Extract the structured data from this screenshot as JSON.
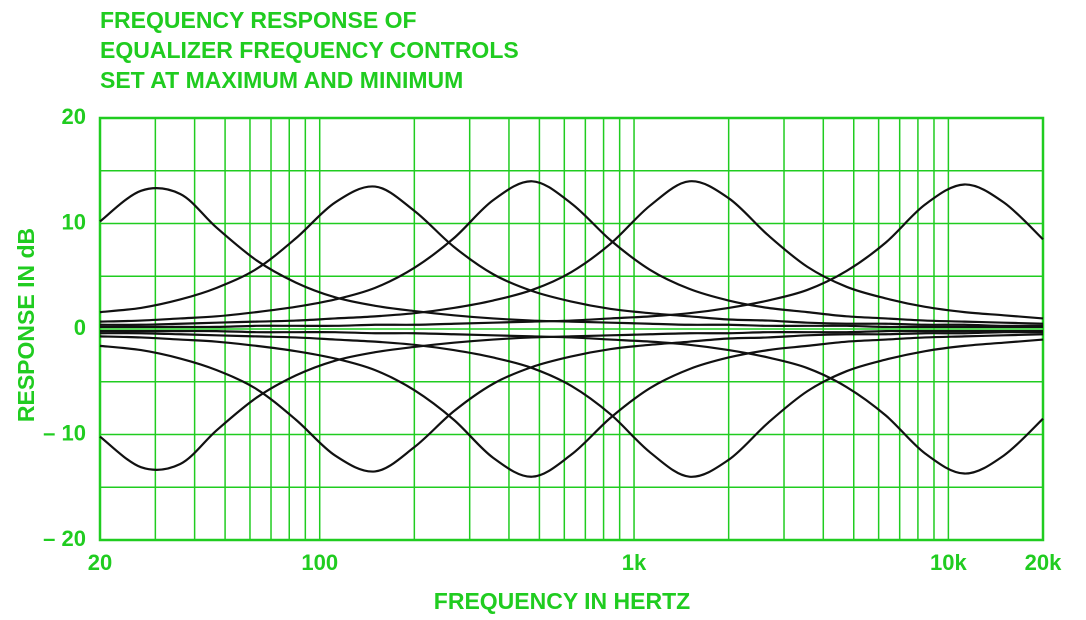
{
  "chart_data": {
    "type": "line",
    "title": [
      "FREQUENCY RESPONSE OF",
      "EQUALIZER FREQUENCY CONTROLS",
      "SET AT MAXIMUM AND MINIMUM"
    ],
    "xlabel": "FREQUENCY IN HERTZ",
    "ylabel": "RESPONSE IN dB",
    "xscale": "log",
    "grid": true,
    "axis_color": "#20cc20",
    "xlim": [
      20,
      20000
    ],
    "ylim": [
      -20,
      20
    ],
    "xticks": [
      20,
      100,
      {
        "value": 1000,
        "label": "1k"
      },
      {
        "value": 10000,
        "label": "10k"
      },
      {
        "value": 20000,
        "label": "20k"
      }
    ],
    "yticks": [
      {
        "value": -20,
        "label": "– 20"
      },
      {
        "value": -10,
        "label": "– 10"
      },
      0,
      10,
      20
    ],
    "xminorticks": [
      30,
      40,
      50,
      60,
      70,
      80,
      90,
      200,
      300,
      400,
      500,
      600,
      700,
      800,
      900,
      2000,
      3000,
      4000,
      5000,
      6000,
      7000,
      8000,
      9000
    ],
    "yminorticks": [
      -15,
      -5,
      5,
      15
    ],
    "x": [
      20,
      27,
      36,
      47,
      63,
      84,
      112,
      150,
      200,
      267,
      356,
      474,
      632,
      843,
      1125,
      1500,
      2000,
      2667,
      3557,
      4743,
      6325,
      8434,
      11247,
      15000,
      20000
    ],
    "series": [
      {
        "color": "#111111",
        "values": [
          10.2,
          13.1,
          12.8,
          9.6,
          6.5,
          4.4,
          3.0,
          2.2,
          1.7,
          1.3,
          1.0,
          0.8,
          0.7,
          0.6,
          0.5,
          0.4,
          0.4,
          0.3,
          0.3,
          0.3,
          0.2,
          0.2,
          0.2,
          0.2,
          0.2
        ]
      },
      {
        "color": "#111111",
        "values": [
          1.6,
          2.0,
          2.8,
          3.9,
          5.7,
          8.6,
          12.0,
          13.5,
          11.2,
          7.8,
          5.2,
          3.6,
          2.6,
          1.9,
          1.5,
          1.2,
          0.9,
          0.8,
          0.6,
          0.5,
          0.5,
          0.4,
          0.4,
          0.3,
          0.3
        ]
      },
      {
        "color": "#111111",
        "values": [
          0.7,
          0.8,
          1.0,
          1.2,
          1.6,
          2.1,
          2.8,
          3.9,
          5.8,
          8.6,
          12.2,
          14.0,
          11.9,
          8.4,
          5.6,
          3.8,
          2.7,
          2.0,
          1.6,
          1.2,
          1.0,
          0.8,
          0.7,
          0.6,
          0.5
        ]
      },
      {
        "color": "#111111",
        "values": [
          0.4,
          0.4,
          0.5,
          0.6,
          0.7,
          0.8,
          1.0,
          1.2,
          1.5,
          2.0,
          2.7,
          3.7,
          5.4,
          8.1,
          11.7,
          14.0,
          12.4,
          8.9,
          5.9,
          4.0,
          2.9,
          2.1,
          1.6,
          1.3,
          1.0
        ]
      },
      {
        "color": "#111111",
        "values": [
          0.2,
          0.2,
          0.2,
          0.2,
          0.3,
          0.3,
          0.3,
          0.4,
          0.4,
          0.5,
          0.6,
          0.7,
          0.8,
          1.0,
          1.2,
          1.5,
          2.0,
          2.7,
          3.7,
          5.5,
          8.2,
          11.8,
          13.7,
          12.0,
          8.5
        ]
      },
      {
        "color": "#111111",
        "values": [
          -10.2,
          -13.1,
          -12.8,
          -9.6,
          -6.5,
          -4.4,
          -3.0,
          -2.2,
          -1.7,
          -1.3,
          -1.0,
          -0.8,
          -0.7,
          -0.6,
          -0.5,
          -0.4,
          -0.4,
          -0.3,
          -0.3,
          -0.3,
          -0.2,
          -0.2,
          -0.2,
          -0.2,
          -0.2
        ]
      },
      {
        "color": "#111111",
        "values": [
          -1.6,
          -2.0,
          -2.8,
          -3.9,
          -5.7,
          -8.6,
          -12.0,
          -13.5,
          -11.2,
          -7.8,
          -5.2,
          -3.6,
          -2.6,
          -1.9,
          -1.5,
          -1.2,
          -0.9,
          -0.8,
          -0.6,
          -0.5,
          -0.5,
          -0.4,
          -0.4,
          -0.3,
          -0.3
        ]
      },
      {
        "color": "#111111",
        "values": [
          -0.7,
          -0.8,
          -1.0,
          -1.2,
          -1.6,
          -2.1,
          -2.8,
          -3.9,
          -5.8,
          -8.6,
          -12.2,
          -14.0,
          -11.9,
          -8.4,
          -5.6,
          -3.8,
          -2.7,
          -2.0,
          -1.6,
          -1.2,
          -1.0,
          -0.8,
          -0.7,
          -0.6,
          -0.5
        ]
      },
      {
        "color": "#111111",
        "values": [
          -0.4,
          -0.4,
          -0.5,
          -0.6,
          -0.7,
          -0.8,
          -1.0,
          -1.2,
          -1.5,
          -2.0,
          -2.7,
          -3.7,
          -5.4,
          -8.1,
          -11.7,
          -14.0,
          -12.4,
          -8.9,
          -5.9,
          -4.0,
          -2.9,
          -2.1,
          -1.6,
          -1.3,
          -1.0
        ]
      },
      {
        "color": "#111111",
        "values": [
          -0.2,
          -0.2,
          -0.2,
          -0.2,
          -0.3,
          -0.3,
          -0.3,
          -0.4,
          -0.4,
          -0.5,
          -0.6,
          -0.7,
          -0.8,
          -1.0,
          -1.2,
          -1.5,
          -2.0,
          -2.7,
          -3.7,
          -5.5,
          -8.2,
          -11.8,
          -13.7,
          -12.0,
          -8.5
        ]
      }
    ]
  }
}
